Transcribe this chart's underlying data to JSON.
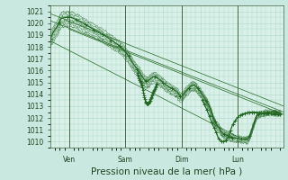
{
  "bg_color": "#c8e8e0",
  "plot_bg": "#d8f0e8",
  "grid_color": "#b0d8c8",
  "line_color": "#226622",
  "tick_color": "#224422",
  "ylabel_text": "Pression niveau de la mer( hPa )",
  "x_tick_labels": [
    "Ven",
    "Sam",
    "Dim",
    "Lun"
  ],
  "ylim": [
    1009.5,
    1021.5
  ],
  "yticks": [
    1010,
    1011,
    1012,
    1013,
    1014,
    1015,
    1016,
    1017,
    1018,
    1019,
    1020,
    1021
  ],
  "tick_fontsize": 5.5,
  "xlabel_fontsize": 7.5
}
